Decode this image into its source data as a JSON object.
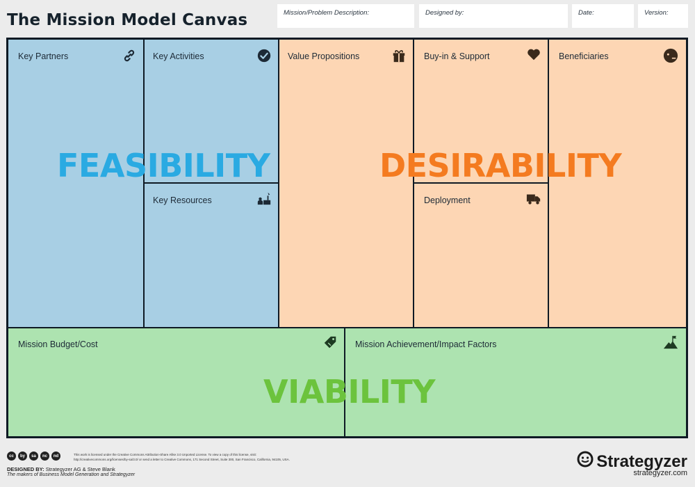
{
  "title": "The Mission Model Canvas",
  "header_fields": {
    "mission": "Mission/Problem Description:",
    "designed_by": "Designed by:",
    "date": "Date:",
    "version": "Version:"
  },
  "blocks": {
    "key_partners": "Key Partners",
    "key_activities": "Key Activities",
    "key_resources": "Key Resources",
    "value_propositions": "Value Propositions",
    "buy_in_support": "Buy-in & Support",
    "deployment": "Deployment",
    "beneficiaries": "Beneficiaries",
    "mission_budget": "Mission Budget/Cost",
    "mission_achievement": "Mission Achievement/Impact Factors"
  },
  "overlays": {
    "feasibility": "FEASIBILITY",
    "desirability": "DESIRABILITY",
    "viability": "VIABILITY"
  },
  "colors": {
    "feasibility": "#2aaae2",
    "desirability": "#f47b20",
    "viability": "#6cc33d",
    "blue_cell": "#a8cfe4",
    "orange_cell": "#fdd6b4",
    "green_cell": "#ade3b0"
  },
  "icons": {
    "key_partners": "link-icon",
    "key_activities": "check-circle-icon",
    "key_resources": "resources-icon",
    "value_propositions": "gift-icon",
    "buy_in_support": "heart-icon",
    "deployment": "truck-icon",
    "beneficiaries": "face-icon",
    "mission_budget": "price-tag-icon",
    "mission_achievement": "mountain-flag-icon"
  },
  "footer": {
    "license_line1": "This work is licensed under the Creative Commons Attribution-Share Alike 3.0 Unported License. To view a copy of this license, visit:",
    "license_line2": "http://creativecommons.org/licenses/by-sa/3.0/ or send a letter to Creative Commons, 171 Second Street, Suite 300, San Francisco, California, 94105, USA.",
    "designed_by_label": "DESIGNED BY:",
    "designed_by_value": "Strategyzer AG & Steve Blank",
    "makers": "The makers of Business Model Generation and Strategyzer",
    "brand": "Strategyzer",
    "brand_url": "strategyzer.com",
    "cc_icons": [
      "cc",
      "by",
      "sa",
      "nc",
      "nd"
    ]
  }
}
